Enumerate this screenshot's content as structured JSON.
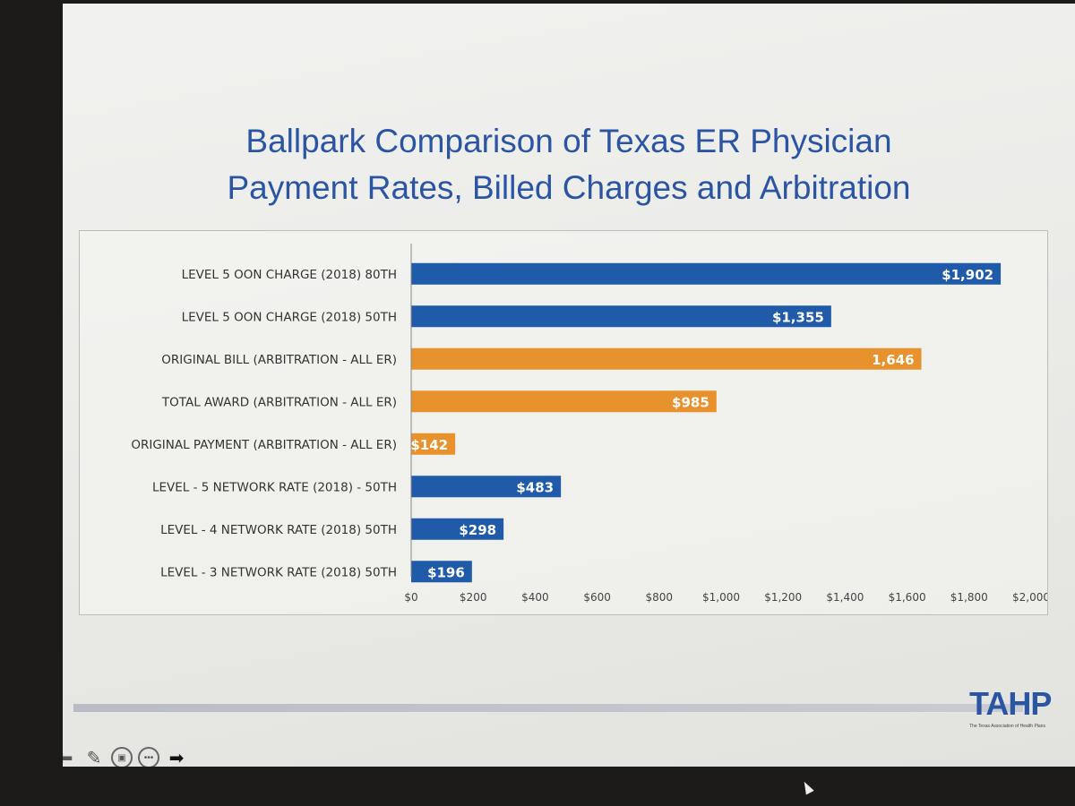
{
  "slide": {
    "title_line1": "Ballpark Comparison of Texas ER Physician",
    "title_line2": "Payment Rates, Billed Charges and Arbitration"
  },
  "logo": {
    "text": "TAHP",
    "subtitle": "The Texas Association of Health Plans"
  },
  "colors": {
    "blue": "#1f5ba8",
    "orange": "#e8922e",
    "title": "#2b55a3"
  },
  "toolbar": {
    "icons": [
      "arrow-left-icon",
      "pen-icon",
      "screen-icon",
      "more-icon",
      "arrow-right-icon"
    ]
  },
  "chart_data": {
    "type": "bar",
    "orientation": "horizontal",
    "categories": [
      "LEVEL 5 OON CHARGE (2018) 80TH",
      "LEVEL 5 OON CHARGE (2018) 50TH",
      "ORIGINAL BILL (ARBITRATION - ALL ER)",
      "TOTAL AWARD (ARBITRATION - ALL ER)",
      "ORIGINAL PAYMENT (ARBITRATION - ALL ER)",
      "LEVEL - 5 NETWORK RATE (2018) - 50TH",
      "LEVEL - 4 NETWORK RATE (2018) 50TH",
      "LEVEL - 3 NETWORK RATE (2018) 50TH"
    ],
    "values": [
      1902,
      1355,
      1646,
      985,
      142,
      483,
      298,
      196
    ],
    "value_labels": [
      "$1,902",
      "$1,355",
      "1,646",
      "$985",
      "$142",
      "$483",
      "$298",
      "$196"
    ],
    "bar_colors": [
      "#1f5ba8",
      "#1f5ba8",
      "#e8922e",
      "#e8922e",
      "#e8922e",
      "#1f5ba8",
      "#1f5ba8",
      "#1f5ba8"
    ],
    "xlim": [
      0,
      2000
    ],
    "xticks": [
      0,
      200,
      400,
      600,
      800,
      1000,
      1200,
      1400,
      1600,
      1800,
      2000
    ],
    "xtick_labels": [
      "$0",
      "$200",
      "$400",
      "$600",
      "$800",
      "$1,000",
      "$1,200",
      "$1,400",
      "$1,600",
      "$1,800",
      "$2,000"
    ],
    "grid": false,
    "legend": "none"
  }
}
